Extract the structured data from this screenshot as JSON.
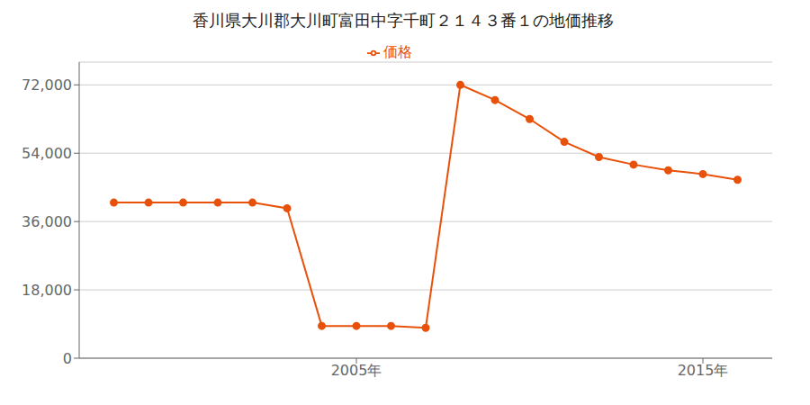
{
  "chart_data": {
    "type": "line",
    "title": "香川県大川郡大川町富田中字千町２１４３番１の地価推移",
    "x": [
      1998,
      1999,
      2000,
      2001,
      2002,
      2003,
      2004,
      2005,
      2006,
      2007,
      2008,
      2009,
      2010,
      2011,
      2012,
      2013,
      2014,
      2015,
      2016
    ],
    "series": [
      {
        "name": "価格",
        "color": "#e8510a",
        "marker": "circle",
        "values": [
          41000,
          41000,
          41000,
          41000,
          41000,
          39500,
          8500,
          8500,
          8500,
          8000,
          72000,
          68000,
          63000,
          57000,
          53000,
          51000,
          49500,
          48500,
          47000
        ]
      }
    ],
    "xlim": [
      1997,
      2017
    ],
    "xticks": [
      {
        "value": 2005,
        "label": "2005年"
      },
      {
        "value": 2015,
        "label": "2015年"
      }
    ],
    "ylim": [
      0,
      78000
    ],
    "yticks": [
      0,
      {
        "value": 18000,
        "label": "18,000"
      },
      {
        "value": 36000,
        "label": "36,000"
      },
      {
        "value": 54000,
        "label": "54,000"
      },
      {
        "value": 72000,
        "label": "72,000"
      }
    ],
    "grid": "y",
    "legend": "top"
  }
}
